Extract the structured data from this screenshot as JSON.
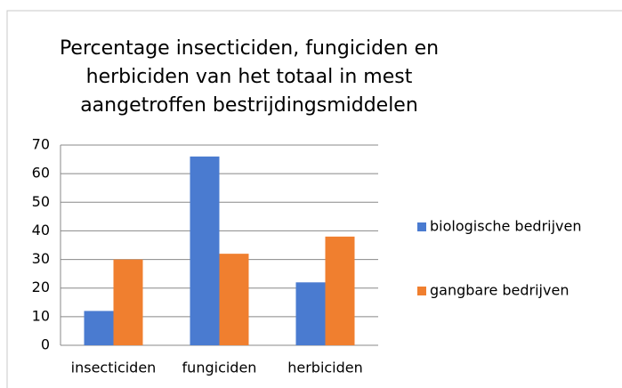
{
  "chart_data": {
    "type": "bar",
    "title": [
      "Percentage insecticiden, fungiciden en",
      "herbiciden van het totaal in mest",
      "aangetroffen bestrijdingsmiddelen"
    ],
    "categories": [
      "insecticiden",
      "fungiciden",
      "herbiciden"
    ],
    "series": [
      {
        "name": "biologische bedrijven",
        "color": "#4a7bd0",
        "values": [
          12,
          66,
          22
        ]
      },
      {
        "name": "gangbare bedrijven",
        "color": "#f07f2f",
        "values": [
          30,
          32,
          38
        ]
      }
    ],
    "ylim": [
      0,
      70
    ],
    "yticks": [
      0,
      10,
      20,
      30,
      40,
      50,
      60,
      70
    ],
    "grid": true,
    "legend": "right"
  }
}
